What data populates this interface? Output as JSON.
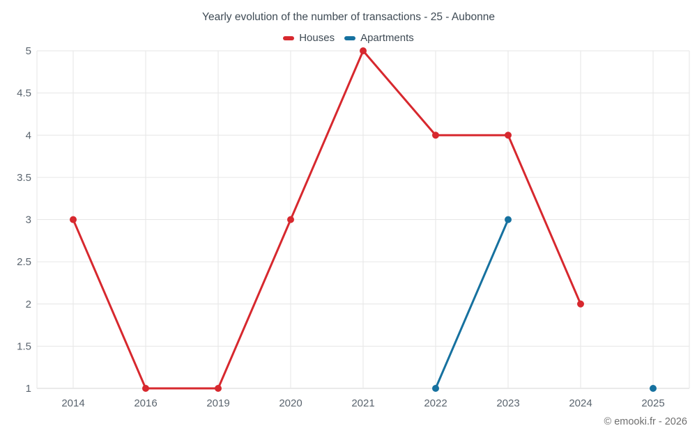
{
  "header": {
    "title": "Yearly evolution of the number of transactions - 25 - Aubonne"
  },
  "footer": {
    "credit": "© emooki.fr - 2026"
  },
  "legend": {
    "items": [
      {
        "label": "Houses",
        "color": "#d7282e"
      },
      {
        "label": "Apartments",
        "color": "#16719f"
      }
    ]
  },
  "colors": {
    "houses": "#d7282e",
    "apartments": "#16719f",
    "gridline": "#e6e6e6",
    "axis_line": "#d4d4d4",
    "axis_label": "#5a646e",
    "title_text": "#3e4a54",
    "background": "#ffffff"
  },
  "chart_data": {
    "type": "line",
    "title": "Yearly evolution of the number of transactions - 25 - Aubonne",
    "xlabel": "",
    "ylabel": "",
    "categories": [
      "2014",
      "2016",
      "2019",
      "2020",
      "2021",
      "2022",
      "2023",
      "2024",
      "2025"
    ],
    "series": [
      {
        "name": "Houses",
        "color": "#d7282e",
        "values": [
          3,
          1,
          1,
          3,
          5,
          4,
          4,
          2,
          null
        ]
      },
      {
        "name": "Apartments",
        "color": "#16719f",
        "values": [
          null,
          null,
          null,
          null,
          null,
          1,
          3,
          null,
          1
        ]
      }
    ],
    "ylim": [
      1,
      5
    ],
    "yticks": [
      1,
      1.5,
      2,
      2.5,
      3,
      3.5,
      4,
      4.5,
      5
    ],
    "grid": true,
    "legend_position": "top",
    "marker": "circle",
    "note_gaps": "missing years break the line; isolated points render as lone markers"
  }
}
